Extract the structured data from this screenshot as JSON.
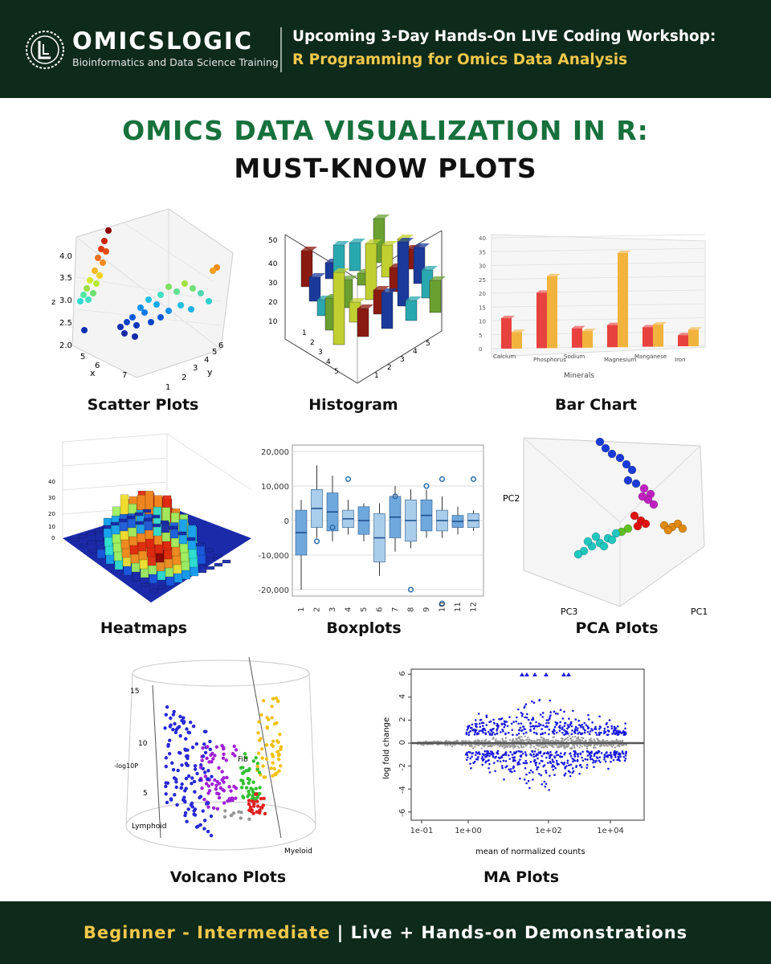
{
  "header": {
    "brand_name_a": "OMICS",
    "brand_name_b": "LOGIC",
    "brand_tagline": "Bioinformatics and Data Science Training",
    "workshop_line": "Upcoming 3-Day Hands-On LIVE Coding Workshop:",
    "workshop_topic": "R Programming for Omics Data Analysis"
  },
  "title": {
    "line1": "OMICS DATA VISUALIZATION IN R:",
    "line2": "MUST-KNOW PLOTS"
  },
  "plots": {
    "scatter": {
      "caption": "Scatter Plots",
      "y_ticks": [
        "4.0",
        "3.5",
        "3.0",
        "2.5",
        "2.0"
      ],
      "x_ticks": [
        "5",
        "6",
        "7"
      ],
      "x_label": "x",
      "y_label": "y",
      "z_label": "z",
      "y2_ticks": [
        "1",
        "2",
        "3",
        "4",
        "5",
        "6"
      ]
    },
    "histogram": {
      "caption": "Histogram",
      "z_ticks": [
        "50",
        "40",
        "30",
        "20",
        "10"
      ],
      "x_ticks": [
        "1",
        "2",
        "3",
        "4",
        "5"
      ],
      "y_ticks": [
        "1",
        "2",
        "3",
        "4",
        "5"
      ]
    },
    "bar": {
      "caption": "Bar Chart",
      "x_label": "Minerals",
      "y_ticks": [
        "40",
        "35",
        "30",
        "25",
        "20",
        "15",
        "10",
        "5",
        "0"
      ],
      "categories": [
        "Calcium",
        "Phosphorus",
        "Sodium",
        "Magnesium",
        "Manganese",
        "Iron"
      ],
      "colors": [
        "#e8423f",
        "#f2b33d"
      ]
    },
    "heatmap": {
      "caption": "Heatmaps",
      "z_ticks": [
        "40",
        "30",
        "20",
        "10",
        "0"
      ]
    },
    "boxplot": {
      "caption": "Boxplots",
      "y_ticks": [
        "20,000",
        "10,000",
        "0",
        "-10,000",
        "-20,000"
      ],
      "x_ticks": [
        "1",
        "2",
        "3",
        "4",
        "5",
        "6",
        "7",
        "8",
        "9",
        "10",
        "11",
        "12"
      ]
    },
    "pca": {
      "caption": "PCA Plots",
      "axes": [
        "PC2",
        "PC3",
        "PC1"
      ]
    },
    "volcano": {
      "caption": "Volcano Plots",
      "y_label": "-log10P",
      "y_ticks": [
        "15",
        "10",
        "5"
      ],
      "labels": [
        "Lymphoid",
        "Myeloid",
        "Fib"
      ]
    },
    "ma": {
      "caption": "MA Plots",
      "y_label": "log fold change",
      "x_label": "mean of normalized counts",
      "y_ticks": [
        "6",
        "4",
        "2",
        "0",
        "-2",
        "-4",
        "-6"
      ],
      "x_ticks": [
        "1e-01",
        "1e+00",
        "1e+02",
        "1e+04"
      ]
    }
  },
  "footer": {
    "level": "Beginner - Intermediate",
    "separator": " | ",
    "format": "Live + Hands-on Demonstrations"
  }
}
